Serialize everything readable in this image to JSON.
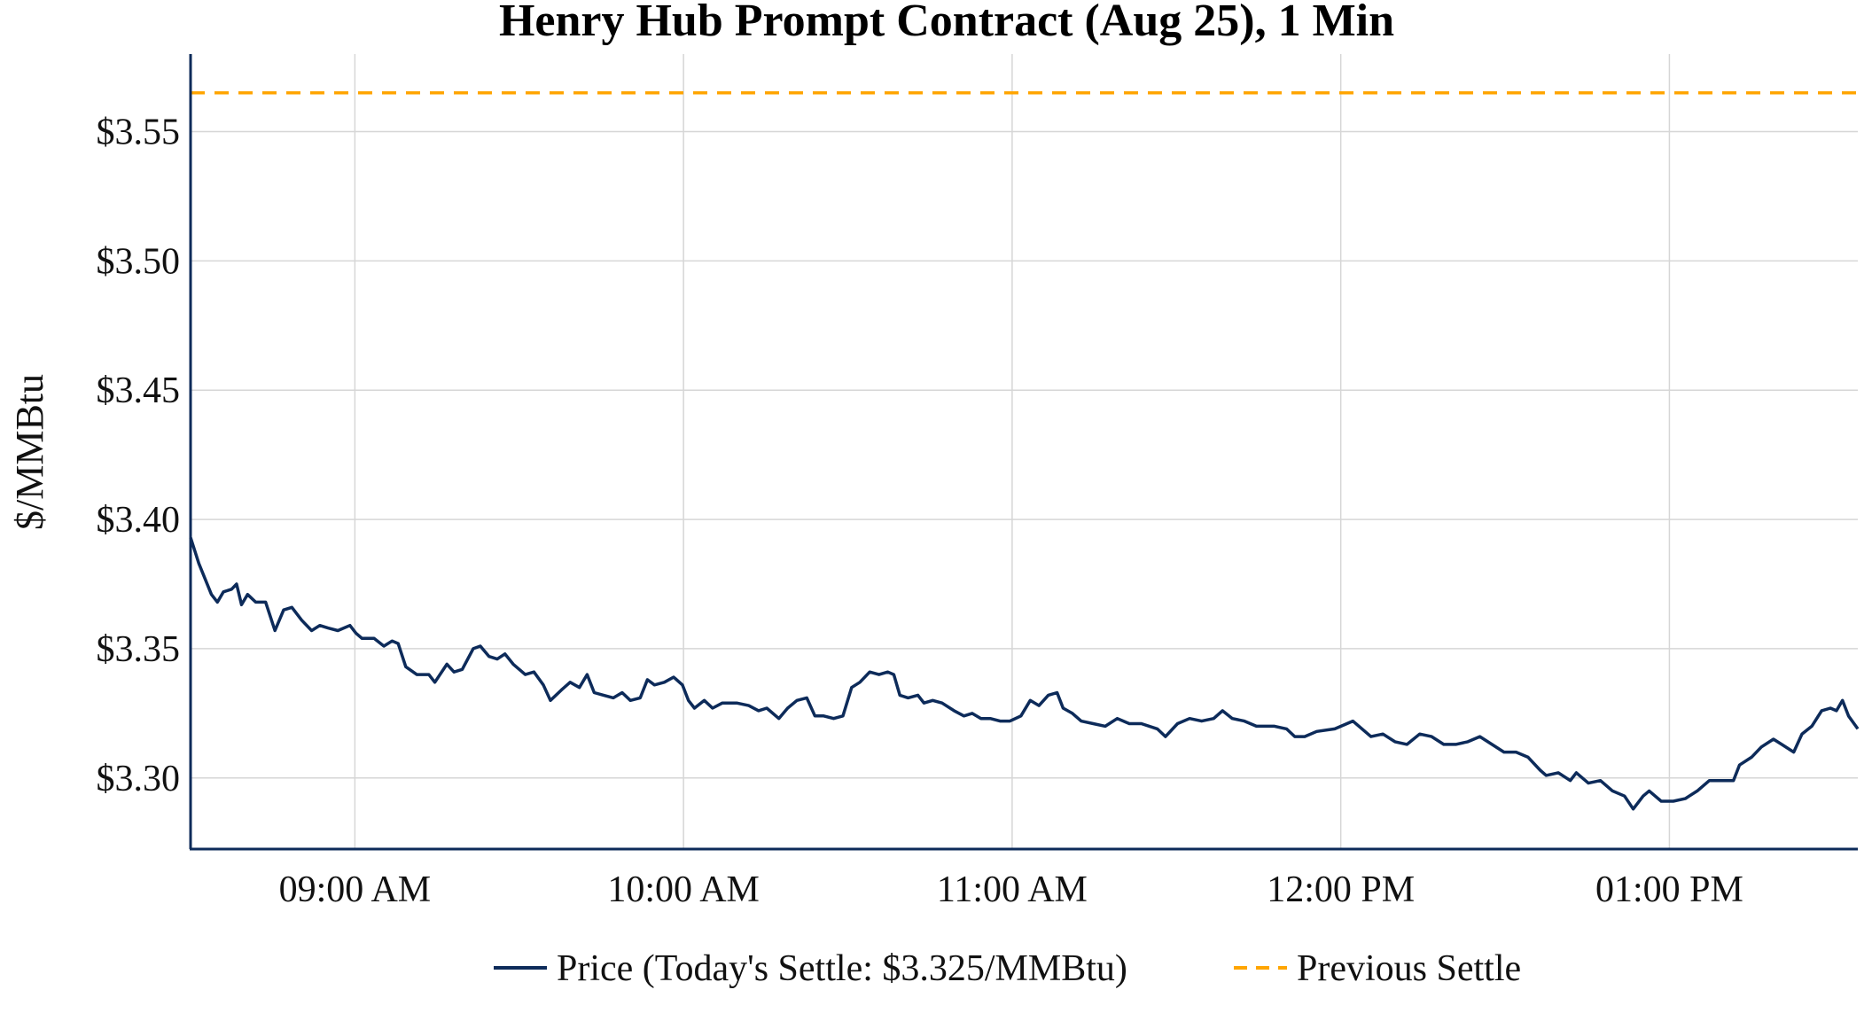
{
  "chart_data": {
    "type": "line",
    "title": "Henry Hub Prompt Contract (Aug 25), 1 Min",
    "xlabel": "",
    "ylabel": "$/MMBtu",
    "x_units": "minutes after 08:30",
    "xlim": [
      0,
      304.4
    ],
    "ylim": [
      3.2725,
      3.58
    ],
    "grid": true,
    "legend_position": "bottom-center",
    "x_ticks": [
      {
        "value": 30,
        "label": "09:00 AM"
      },
      {
        "value": 90,
        "label": "10:00 AM"
      },
      {
        "value": 150,
        "label": "11:00 AM"
      },
      {
        "value": 210,
        "label": "12:00 PM"
      },
      {
        "value": 270,
        "label": "01:00 PM"
      }
    ],
    "y_ticks": [
      {
        "value": 3.3,
        "label": "$3.30"
      },
      {
        "value": 3.35,
        "label": "$3.35"
      },
      {
        "value": 3.4,
        "label": "$3.40"
      },
      {
        "value": 3.45,
        "label": "$3.45"
      },
      {
        "value": 3.5,
        "label": "$3.50"
      },
      {
        "value": 3.55,
        "label": "$3.55"
      }
    ],
    "series": [
      {
        "name": "Price (Today's Settle: $3.325/MMBtu)",
        "color": "#0d2b5a",
        "style": "solid",
        "x": [
          0,
          1.5,
          3.8,
          4.9,
          6,
          7.5,
          8.4,
          9.3,
          10.4,
          11.9,
          13.7,
          15.4,
          17,
          18.5,
          20.3,
          22.1,
          23.6,
          25.1,
          26.9,
          29.1,
          30.2,
          31.3,
          33.5,
          35.3,
          36.8,
          37.9,
          39.3,
          41.3,
          43.5,
          44.6,
          46.8,
          48.1,
          49.6,
          51.6,
          52.9,
          54.5,
          56,
          57.4,
          58.9,
          61.1,
          62.7,
          64.4,
          65.7,
          67.7,
          69.3,
          71,
          72.4,
          73.7,
          75.4,
          77.2,
          78.8,
          80.3,
          82.1,
          83.4,
          84.7,
          86.5,
          88.2,
          89.8,
          90.9,
          92,
          93.8,
          95.3,
          97.1,
          99.7,
          101.9,
          103.7,
          105.2,
          107.4,
          109,
          110.7,
          112.5,
          114,
          115.6,
          117.4,
          119.1,
          120.7,
          122.2,
          124,
          125.7,
          127.3,
          128.4,
          129.5,
          131,
          132.8,
          133.9,
          135.5,
          137.2,
          139.4,
          141.2,
          142.7,
          144.3,
          146,
          147.8,
          149.6,
          151.6,
          153.3,
          154.9,
          156.6,
          158.2,
          159.3,
          161,
          162.6,
          164.8,
          167,
          169.2,
          171.4,
          173.6,
          176.5,
          178,
          180.2,
          182.4,
          184.6,
          186.8,
          188.4,
          190.2,
          192.4,
          194.6,
          197.9,
          200.1,
          201.6,
          203.4,
          205.6,
          208.9,
          212.2,
          215.5,
          217.7,
          219.9,
          222.1,
          224.4,
          226.6,
          228.8,
          231,
          233.2,
          235.4,
          237.6,
          239.8,
          242,
          244.2,
          246.4,
          247.5,
          249.7,
          251.9,
          253,
          255.2,
          257.4,
          259.6,
          261.8,
          263.4,
          265.2,
          266.3,
          268.5,
          270.7,
          272.9,
          275.1,
          277.3,
          279.5,
          281.7,
          282.8,
          285,
          286.8,
          289,
          290.5,
          292.7,
          294.2,
          296,
          297.8,
          299.4,
          300.5,
          301.6,
          302.7,
          304.4
        ],
        "y": [
          3.393,
          3.383,
          3.371,
          3.368,
          3.372,
          3.373,
          3.375,
          3.367,
          3.371,
          3.368,
          3.368,
          3.357,
          3.365,
          3.366,
          3.361,
          3.357,
          3.359,
          3.358,
          3.357,
          3.359,
          3.356,
          3.354,
          3.354,
          3.351,
          3.353,
          3.352,
          3.343,
          3.34,
          3.34,
          3.337,
          3.344,
          3.341,
          3.342,
          3.35,
          3.351,
          3.347,
          3.346,
          3.348,
          3.344,
          3.34,
          3.341,
          3.336,
          3.33,
          3.334,
          3.337,
          3.335,
          3.34,
          3.333,
          3.332,
          3.331,
          3.333,
          3.33,
          3.331,
          3.338,
          3.336,
          3.337,
          3.339,
          3.336,
          3.33,
          3.327,
          3.33,
          3.327,
          3.329,
          3.329,
          3.328,
          3.326,
          3.327,
          3.323,
          3.327,
          3.33,
          3.331,
          3.324,
          3.324,
          3.323,
          3.324,
          3.335,
          3.337,
          3.341,
          3.34,
          3.341,
          3.34,
          3.332,
          3.331,
          3.332,
          3.329,
          3.33,
          3.329,
          3.326,
          3.324,
          3.325,
          3.323,
          3.323,
          3.322,
          3.322,
          3.324,
          3.33,
          3.328,
          3.332,
          3.333,
          3.327,
          3.325,
          3.322,
          3.321,
          3.32,
          3.323,
          3.321,
          3.321,
          3.319,
          3.316,
          3.321,
          3.323,
          3.322,
          3.323,
          3.326,
          3.323,
          3.322,
          3.32,
          3.32,
          3.319,
          3.316,
          3.316,
          3.318,
          3.319,
          3.322,
          3.316,
          3.317,
          3.314,
          3.313,
          3.317,
          3.316,
          3.313,
          3.313,
          3.314,
          3.316,
          3.313,
          3.31,
          3.31,
          3.308,
          3.303,
          3.301,
          3.302,
          3.299,
          3.302,
          3.298,
          3.299,
          3.295,
          3.293,
          3.288,
          3.293,
          3.295,
          3.291,
          3.291,
          3.292,
          3.295,
          3.299,
          3.299,
          3.299,
          3.305,
          3.308,
          3.312,
          3.315,
          3.313,
          3.31,
          3.317,
          3.32,
          3.326,
          3.327,
          3.326,
          3.33,
          3.324,
          3.319
        ]
      },
      {
        "name": "Previous Settle",
        "color": "#ffa500",
        "style": "dashed",
        "value": 3.565
      }
    ]
  }
}
